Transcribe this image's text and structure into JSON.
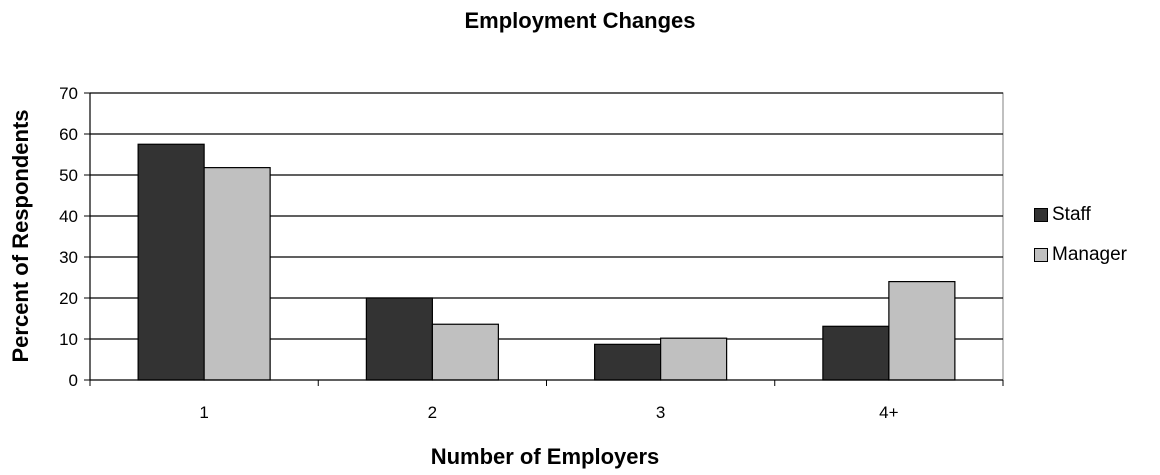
{
  "chart_data": {
    "type": "bar",
    "title": "Employment Changes",
    "xlabel": "Number of Employers",
    "ylabel": "Percent of Respondents",
    "categories": [
      "1",
      "2",
      "3",
      "4+"
    ],
    "series": [
      {
        "name": "Staff",
        "values": [
          57.5,
          20,
          8.7,
          13.1
        ],
        "color": "#333333"
      },
      {
        "name": "Manager",
        "values": [
          51.8,
          13.6,
          10.2,
          24
        ],
        "color": "#c0c0c0"
      }
    ],
    "ylim": [
      0,
      70
    ],
    "yticks": [
      0,
      10,
      20,
      30,
      40,
      50,
      60,
      70
    ],
    "grid": true,
    "legend": "right"
  }
}
